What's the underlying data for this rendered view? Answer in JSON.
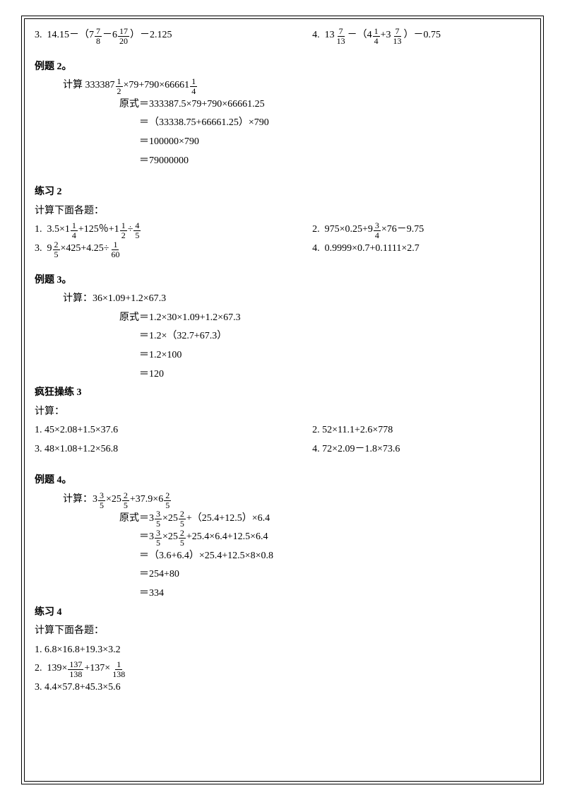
{
  "top": {
    "left_num": "3.",
    "left_expr": {
      "a": "14.15－（7",
      "f1n": "7",
      "f1d": "8",
      "b": "－6",
      "f2n": "17",
      "f2d": "20",
      "c": "）－2.125"
    },
    "right_num": "4.",
    "right_expr": {
      "a": "13",
      "f1n": "7",
      "f1d": "13",
      "b": "－（4",
      "f2n": "1",
      "f2d": "4",
      "c": "+3",
      "f3n": "7",
      "f3d": "13",
      "d": "）－0.75"
    }
  },
  "ex2": {
    "title": "例题 2。",
    "calc_label": "计算 333387",
    "f1n": "1",
    "f1d": "2",
    "mid": "×79+790×66661",
    "f2n": "1",
    "f2d": "4",
    "s1": "原式＝333387.5×79+790×66661.25",
    "s2": "＝（33338.75+66661.25）×790",
    "s3": "＝100000×790",
    "s4": "＝79000000"
  },
  "p2": {
    "title": "练习 2",
    "sub": "计算下面各题：",
    "l1": {
      "num": "1.",
      "a": "3.5×1",
      "f1n": "1",
      "f1d": "4",
      "b": "+125％+1",
      "f2n": "1",
      "f2d": "2",
      "c": "÷",
      "f3n": "4",
      "f3d": "5"
    },
    "r1": {
      "num": "2.",
      "a": "975×0.25+9",
      "f1n": "3",
      "f1d": "4",
      "b": "×76－9.75"
    },
    "l2": {
      "num": "3.",
      "a": "9",
      "f1n": "2",
      "f1d": "5",
      "b": "×425+4.25÷",
      "f2n": "1",
      "f2d": "60"
    },
    "r2": {
      "num": "4.",
      "a": "0.9999×0.7+0.1111×2.7"
    }
  },
  "ex3": {
    "title": "例题 3。",
    "calc": "计算：36×1.09+1.2×67.3",
    "s1": "原式＝1.2×30×1.09+1.2×67.3",
    "s2": "＝1.2×（32.7+67.3）",
    "s3": "＝1.2×100",
    "s4": "＝120"
  },
  "p3": {
    "title": "疯狂操练 3",
    "sub": "计算：",
    "l1": "1.  45×2.08+1.5×37.6",
    "r1": "2.  52×11.1+2.6×778",
    "l2": "3.  48×1.08+1.2×56.8",
    "r2": "4.  72×2.09－1.8×73.6"
  },
  "ex4": {
    "title": "例题 4。",
    "calc_label": "计算：3",
    "f1n": "3",
    "f1d": "5",
    "mid1": "×25",
    "f2n": "2",
    "f2d": "5",
    "mid2": "+37.9×6",
    "f3n": "2",
    "f3d": "5",
    "s1a": "原式＝3",
    "s1b": "×25",
    "s1c": "+（25.4+12.5）×6.4",
    "s2a": "＝3",
    "s2b": "×25",
    "s2c": "+25.4×6.4+12.5×6.4",
    "s3": "＝（3.6+6.4）×25.4+12.5×8×0.8",
    "s4": "＝254+80",
    "s5": "＝334"
  },
  "p4": {
    "title": "练习 4",
    "sub": "计算下面各题：",
    "l1": "1.  6.8×16.8+19.3×3.2",
    "l2": {
      "num": "2.",
      "a": "139×",
      "f1n": "137",
      "f1d": "138",
      "b": "+137×",
      "f2n": "1",
      "f2d": "138"
    },
    "l3": "3.  4.4×57.8+45.3×5.6"
  }
}
